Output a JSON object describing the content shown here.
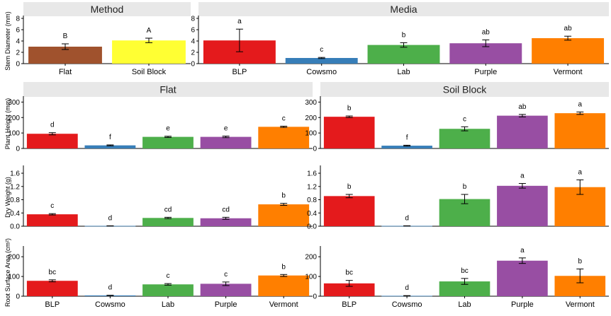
{
  "colors": {
    "strip": "#e8e8e8",
    "axis": "#000000",
    "errorbar": "#000000",
    "Flat": "#a0522d",
    "Soil Block": "#ffff33",
    "BLP": "#e41a1c",
    "Cowsmo": "#377eb8",
    "Lab": "#4daf4a",
    "Purple": "#984ea3",
    "Vermont": "#ff7f00"
  },
  "chart_data": [
    {
      "id": "method",
      "type": "bar",
      "strip": "Method",
      "ylabel": "Stem Diameter (mm)",
      "ylim": [
        0,
        8
      ],
      "yticks": [
        0,
        2,
        4,
        6,
        8
      ],
      "categories": [
        "Flat",
        "Soil Block"
      ],
      "values": [
        3.0,
        4.1
      ],
      "errors": [
        0.5,
        0.4
      ],
      "letters": [
        "B",
        "A"
      ]
    },
    {
      "id": "media",
      "type": "bar",
      "strip": "Media",
      "ylim": [
        0,
        8
      ],
      "yticks": [
        0,
        2,
        4,
        6,
        8
      ],
      "categories": [
        "BLP",
        "Cowsmo",
        "Lab",
        "Purple",
        "Vermont"
      ],
      "values": [
        4.1,
        1.0,
        3.3,
        3.6,
        4.5
      ],
      "errors": [
        2.0,
        0.1,
        0.4,
        0.6,
        0.35
      ],
      "letters": [
        "a",
        "c",
        "b",
        "ab",
        "ab"
      ]
    },
    {
      "id": "ph-flat",
      "type": "bar",
      "strip": "Flat",
      "ylabel": "Plant Height (mm)",
      "ylim": [
        0,
        320
      ],
      "yticks": [
        0,
        100,
        200,
        300
      ],
      "categories": [
        "BLP",
        "Cowsmo",
        "Lab",
        "Purple",
        "Vermont"
      ],
      "values": [
        95,
        20,
        75,
        75,
        140
      ],
      "errors": [
        7,
        3,
        4,
        5,
        4
      ],
      "letters": [
        "d",
        "f",
        "e",
        "e",
        "c"
      ]
    },
    {
      "id": "ph-soil",
      "type": "bar",
      "strip": "Soil Block",
      "ylim": [
        0,
        320
      ],
      "yticks": [
        0,
        100,
        200,
        300
      ],
      "categories": [
        "BLP",
        "Cowsmo",
        "Lab",
        "Purple",
        "Vermont"
      ],
      "values": [
        205,
        18,
        127,
        212,
        228
      ],
      "errors": [
        5,
        3,
        13,
        8,
        8
      ],
      "letters": [
        "b",
        "f",
        "c",
        "ab",
        "a"
      ]
    },
    {
      "id": "dw-flat",
      "type": "bar",
      "ylabel": "Dry Weight (g)",
      "ylim": [
        0,
        1.75
      ],
      "yticks": [
        0,
        0.4,
        0.8,
        1.2,
        1.6
      ],
      "ytick_labels": [
        "0.0",
        "0.4",
        "0.8",
        "1.2",
        "1.6"
      ],
      "categories": [
        "BLP",
        "Cowsmo",
        "Lab",
        "Purple",
        "Vermont"
      ],
      "values": [
        0.36,
        0.01,
        0.25,
        0.24,
        0.66
      ],
      "errors": [
        0.02,
        0.003,
        0.02,
        0.03,
        0.03
      ],
      "letters": [
        "c",
        "d",
        "cd",
        "cd",
        "b"
      ]
    },
    {
      "id": "dw-soil",
      "type": "bar",
      "ylim": [
        0,
        1.75
      ],
      "yticks": [
        0,
        0.4,
        0.8,
        1.2,
        1.6
      ],
      "ytick_labels": [
        "0.0",
        "0.4",
        "0.8",
        "1.2",
        "1.6"
      ],
      "categories": [
        "BLP",
        "Cowsmo",
        "Lab",
        "Purple",
        "Vermont"
      ],
      "values": [
        0.91,
        0.01,
        0.82,
        1.22,
        1.18
      ],
      "errors": [
        0.05,
        0.003,
        0.14,
        0.07,
        0.22
      ],
      "letters": [
        "b",
        "d",
        "b",
        "a",
        "a"
      ]
    },
    {
      "id": "rsa-flat",
      "type": "bar",
      "ylabel": "Root Surface Area (cm²)",
      "ylim": [
        0,
        240
      ],
      "yticks": [
        0,
        100,
        200
      ],
      "categories": [
        "BLP",
        "Cowsmo",
        "Lab",
        "Purple",
        "Vermont"
      ],
      "values": [
        78,
        4,
        60,
        63,
        105
      ],
      "errors": [
        5,
        1,
        4,
        9,
        5
      ],
      "letters": [
        "bc",
        "d",
        "c",
        "c",
        "b"
      ]
    },
    {
      "id": "rsa-soil",
      "type": "bar",
      "ylim": [
        0,
        240
      ],
      "yticks": [
        0,
        100,
        200
      ],
      "categories": [
        "BLP",
        "Cowsmo",
        "Lab",
        "Purple",
        "Vermont"
      ],
      "values": [
        65,
        2,
        75,
        180,
        103
      ],
      "errors": [
        15,
        1,
        15,
        14,
        35
      ],
      "letters": [
        "bc",
        "d",
        "bc",
        "a",
        "b"
      ]
    }
  ]
}
